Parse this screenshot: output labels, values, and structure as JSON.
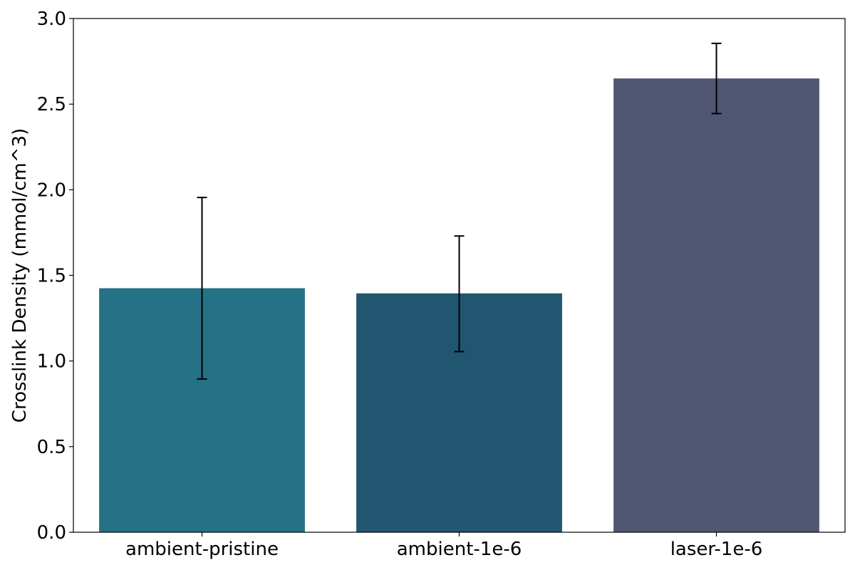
{
  "chart_data": {
    "type": "bar",
    "title": "",
    "xlabel": "",
    "ylabel": "Crosslink Density (mmol/cm^3)",
    "categories": [
      "ambient-pristine",
      "ambient-1e-6",
      "laser-1e-6"
    ],
    "values": [
      1.425,
      1.395,
      2.65
    ],
    "error_low": [
      0.895,
      1.055,
      2.445
    ],
    "error_high": [
      1.955,
      1.73,
      2.855
    ],
    "colors": [
      "#257185",
      "#215671",
      "#515672"
    ],
    "ylim": [
      0,
      3.0
    ],
    "yticks": [
      "0.0",
      "0.5",
      "1.0",
      "1.5",
      "2.0",
      "2.5",
      "3.0"
    ],
    "grid": false,
    "legend": "none"
  }
}
